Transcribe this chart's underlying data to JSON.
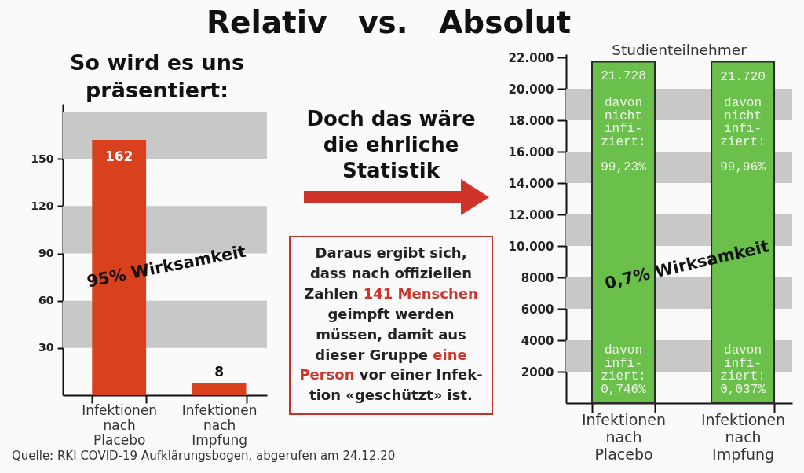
{
  "chart_data": [
    {
      "type": "bar",
      "title": "So wird es uns präsentiert:",
      "categories": [
        "Infektionen nach Placebo",
        "Infektionen nach Impfung"
      ],
      "values": [
        162,
        8
      ],
      "color": "#d9411e",
      "data_labels": true,
      "ylim": [
        0,
        185
      ],
      "yticks": [
        30,
        60,
        90,
        120,
        150
      ],
      "bands": [
        {
          "axis": "y",
          "from": 30,
          "to": 60,
          "color": "#c8c8c8"
        },
        {
          "axis": "y",
          "from": 90,
          "to": 120,
          "color": "#c8c8c8"
        },
        {
          "axis": "y",
          "from": 150,
          "to": 180,
          "color": "#c8c8c8"
        }
      ],
      "annotations": [
        "95% Wirksamkeit",
        "Quelle: RKI COVID-19 Aufklärungsbogen, abgerufen am 24.12.20"
      ]
    },
    {
      "type": "other",
      "title": "Relativ vs. Absolut",
      "subtitle": "Doch das wäre die ehrliche Statistik",
      "annotations": [
        "Daraus ergibt sich,",
        "dass nach offiziellen",
        "Zahlen",
        "141 Menschen",
        "geimpft werden",
        "müssen, damit aus",
        "dieser Gruppe",
        "eine",
        "Person",
        "vor einer Infek-",
        "tion «geschützt» ist."
      ]
    },
    {
      "type": "bar",
      "title": "Studienteilnehmer",
      "categories": [
        "Infektionen nach Placebo",
        "Infektionen nach Impfung"
      ],
      "values": [
        21728,
        21720
      ],
      "color": "#6bc04b",
      "value_labels": [
        "21.728",
        "21.720"
      ],
      "ylim": [
        0,
        22200
      ],
      "yticks": [
        2000,
        4000,
        6000,
        8000,
        {
          "value": 10000,
          "label": "10.000"
        },
        {
          "value": 12000,
          "label": "12.000"
        },
        {
          "value": 14000,
          "label": "14.000"
        },
        {
          "value": 16000,
          "label": "16.000"
        },
        {
          "value": 18000,
          "label": "18.000"
        },
        {
          "value": 20000,
          "label": "20.000"
        },
        {
          "value": 22000,
          "label": "22.000"
        }
      ],
      "bands": [
        {
          "axis": "y",
          "from": 2000,
          "to": 4000,
          "color": "#c8c8c8"
        },
        {
          "axis": "y",
          "from": 6000,
          "to": 8000,
          "color": "#c8c8c8"
        },
        {
          "axis": "y",
          "from": 10000,
          "to": 12000,
          "color": "#c8c8c8"
        },
        {
          "axis": "y",
          "from": 14000,
          "to": 16000,
          "color": "#c8c8c8"
        },
        {
          "axis": "y",
          "from": 18000,
          "to": 20000,
          "color": "#c8c8c8"
        }
      ],
      "annotations": [
        "davon\nnicht\ninfi-\nziert:",
        "davon\nnicht\ninfi-\nziert:",
        "99,23%",
        "99,96%",
        "0,7% Wirksamkeit",
        "davon\ninfi-\nziert:\n0,746%",
        "davon\ninfi-\nziert:\n0,037%"
      ]
    }
  ]
}
